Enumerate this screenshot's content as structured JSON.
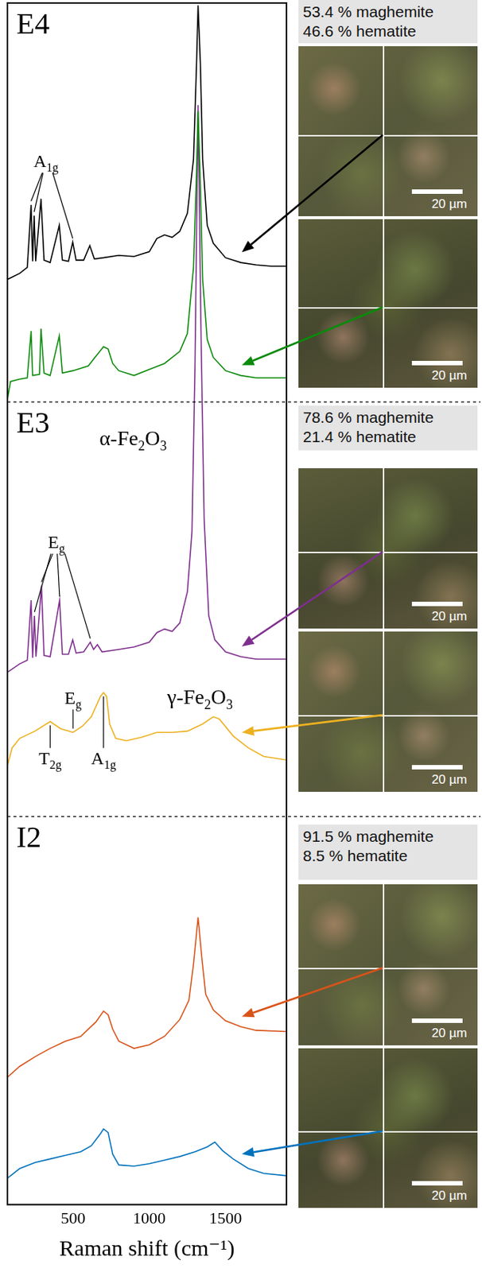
{
  "chart_data": {
    "type": "line",
    "x_label": "Raman shift (cm⁻¹)",
    "xlim": [
      70,
      1900
    ],
    "xticks": [
      500,
      1000,
      1500
    ],
    "ylim": [
      0,
      100
    ],
    "tick_labels": "x",
    "grid": false,
    "panels": [
      {
        "label": "E4",
        "composition": [
          "53.4 % maghemite",
          "46.6 % hematite"
        ],
        "series": [
          {
            "color": "#000000",
            "scale_bar": "20 µm",
            "labels_above": [
              {
                "text": "A1g",
                "x": [
                  225,
                  245,
                  498
                ]
              }
            ],
            "x": [
              70,
              150,
              200,
              225,
              235,
              245,
              255,
              290,
              310,
              350,
              410,
              430,
              470,
              498,
              520,
              570,
              610,
              640,
              700,
              800,
              900,
              1000,
              1050,
              1100,
              1150,
              1200,
              1250,
              1290,
              1310,
              1320,
              1335,
              1350,
              1380,
              1420,
              1500,
              1600,
              1700,
              1800,
              1900
            ],
            "values": [
              77.0,
              77.5,
              78.0,
              83.2,
              78.5,
              82.3,
              78.5,
              83.7,
              78.6,
              78.4,
              81.5,
              78.6,
              78.5,
              80.1,
              78.6,
              78.6,
              79.8,
              78.7,
              78.8,
              79.0,
              78.9,
              79.3,
              80.4,
              80.7,
              80.5,
              81.0,
              82.5,
              87.0,
              95.0,
              99.8,
              95.0,
              87.0,
              81.5,
              80.0,
              78.8,
              78.4,
              78.2,
              78.1,
              78.1
            ]
          },
          {
            "color": "#0b8a0b",
            "scale_bar": "20 µm",
            "x": [
              70,
              90,
              150,
              200,
              225,
              235,
              280,
              290,
              310,
              350,
              410,
              430,
              500,
              600,
              650,
              700,
              730,
              760,
              800,
              900,
              1000,
              1100,
              1200,
              1250,
              1290,
              1310,
              1320,
              1335,
              1350,
              1380,
              1420,
              1500,
              1600,
              1700,
              1900
            ],
            "values": [
              67.0,
              68.5,
              68.7,
              68.8,
              72.7,
              69.0,
              69.1,
              72.9,
              69.2,
              69.0,
              72.3,
              69.2,
              69.4,
              69.8,
              70.6,
              71.4,
              71.2,
              70.0,
              69.4,
              69.0,
              69.5,
              70.0,
              71.0,
              72.5,
              78.0,
              86.0,
              91.0,
              85.0,
              77.0,
              72.0,
              70.5,
              69.4,
              69.0,
              68.8,
              68.8
            ]
          }
        ]
      },
      {
        "label": "E3",
        "composition": [
          "78.6 % maghemite",
          "21.4 % hematite"
        ],
        "series": [
          {
            "color": "#7e2f8e",
            "scale_bar": "20 µm",
            "phase_label": "α-Fe2O3",
            "labels_above": [
              {
                "text": "Eg",
                "x": [
                  247,
                  293,
                  412,
                  613
                ]
              }
            ],
            "x": [
              70,
              150,
              200,
              225,
              235,
              247,
              257,
              293,
              310,
              350,
              412,
              430,
              470,
              498,
              520,
              570,
              613,
              635,
              660,
              690,
              800,
              900,
              1000,
              1050,
              1100,
              1150,
              1200,
              1250,
              1280,
              1300,
              1320,
              1340,
              1360,
              1390,
              1430,
              1500,
              1600,
              1700,
              1900
            ],
            "values": [
              44.3,
              45.0,
              45.3,
              50.3,
              45.5,
              49.0,
              45.6,
              51.5,
              45.7,
              45.6,
              50.3,
              45.8,
              45.8,
              47.0,
              45.9,
              46.0,
              46.8,
              46.2,
              46.6,
              46.0,
              46.2,
              46.4,
              46.8,
              47.6,
              47.9,
              47.7,
              48.4,
              51.0,
              56.0,
              70.0,
              91.5,
              72.0,
              57.0,
              49.0,
              47.0,
              46.0,
              45.6,
              45.4,
              45.4
            ]
          },
          {
            "color": "#edb120",
            "scale_bar": "20 µm",
            "phase_label": "γ-Fe2O3",
            "labels_above": [
              {
                "text": "Eg",
                "x": [
                  500
                ]
              }
            ],
            "labels_below": [
              {
                "text": "T2g",
                "x": [
                  350
                ]
              },
              {
                "text": "A1g",
                "x": [
                  700
                ]
              }
            ],
            "x": [
              70,
              100,
              150,
              250,
              350,
              420,
              500,
              560,
              620,
              680,
              700,
              720,
              740,
              780,
              850,
              950,
              1050,
              1150,
              1250,
              1350,
              1420,
              1460,
              1550,
              1650,
              1750,
              1900
            ],
            "values": [
              36.5,
              38.0,
              38.8,
              39.4,
              40.2,
              39.6,
              39.3,
              39.8,
              40.6,
              42.3,
              42.6,
              42.3,
              40.0,
              38.8,
              38.6,
              38.9,
              39.3,
              39.3,
              39.4,
              40.0,
              40.6,
              40.4,
              39.0,
              38.0,
              37.3,
              37.0
            ]
          }
        ]
      },
      {
        "label": "I2",
        "composition": [
          "91.5 % maghemite",
          "8.5 % hematite"
        ],
        "series": [
          {
            "color": "#d95319",
            "scale_bar": "20 µm",
            "x": [
              70,
              150,
              250,
              350,
              450,
              550,
              650,
              700,
              730,
              760,
              800,
              900,
              1000,
              1100,
              1200,
              1260,
              1290,
              1320,
              1345,
              1370,
              1420,
              1500,
              1600,
              1700,
              1900
            ],
            "values": [
              10.6,
              11.5,
              12.3,
              13.0,
              13.6,
              14.0,
              15.2,
              16.1,
              15.8,
              14.6,
              13.6,
              13.0,
              13.3,
              14.0,
              15.4,
              17.0,
              20.0,
              23.9,
              20.5,
              17.5,
              16.2,
              15.3,
              14.8,
              14.5,
              14.4
            ]
          },
          {
            "color": "#0072bd",
            "scale_bar": "20 µm",
            "x": [
              70,
              150,
              250,
              350,
              450,
              550,
              620,
              680,
              700,
              730,
              760,
              800,
              900,
              1000,
              1100,
              1200,
              1300,
              1380,
              1430,
              1480,
              1550,
              1650,
              1750,
              1900
            ],
            "values": [
              2.2,
              3.0,
              3.5,
              3.8,
              4.1,
              4.4,
              4.9,
              5.9,
              6.3,
              6.0,
              4.2,
              3.3,
              3.2,
              3.4,
              3.7,
              4.0,
              4.4,
              4.8,
              5.2,
              4.5,
              3.8,
              3.0,
              2.6,
              2.4
            ]
          }
        ]
      }
    ]
  }
}
